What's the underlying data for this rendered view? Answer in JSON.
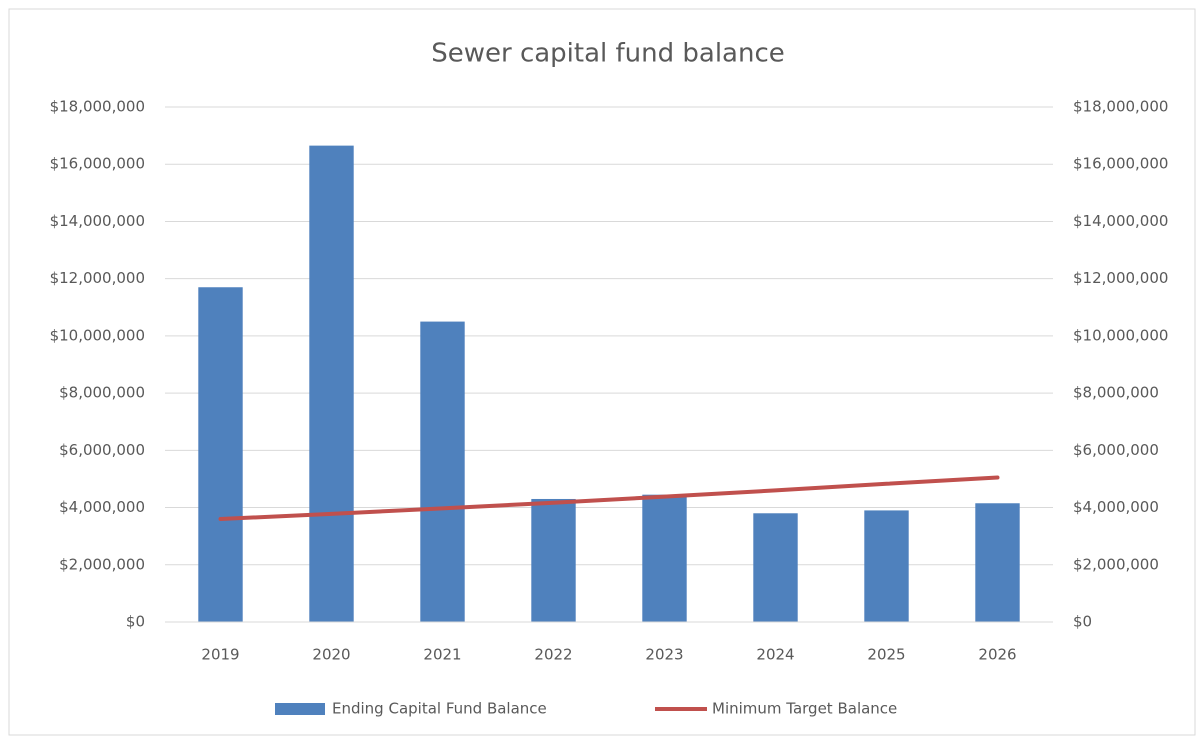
{
  "chart_data": {
    "type": "bar",
    "title": "Sewer capital fund balance",
    "categories": [
      "2019",
      "2020",
      "2021",
      "2022",
      "2023",
      "2024",
      "2025",
      "2026"
    ],
    "series": [
      {
        "name": "Ending Capital Fund Balance",
        "type": "bar",
        "color": "#4f81bd",
        "values": [
          11700000,
          16650000,
          10500000,
          4300000,
          4450000,
          3800000,
          3900000,
          4150000
        ]
      },
      {
        "name": "Minimum Target Balance",
        "type": "line",
        "axis": "y2",
        "color": "#c0504d",
        "values": [
          3600000,
          3780000,
          3970000,
          4170000,
          4380000,
          4600000,
          4830000,
          5050000
        ]
      }
    ],
    "ylim": [
      0,
      18000000
    ],
    "yticks": [
      {
        "value": 0,
        "label": "$0"
      },
      {
        "value": 2000000,
        "label": "$2,000,000"
      },
      {
        "value": 4000000,
        "label": "$4,000,000"
      },
      {
        "value": 6000000,
        "label": "$6,000,000"
      },
      {
        "value": 8000000,
        "label": "$8,000,000"
      },
      {
        "value": 10000000,
        "label": "$10,000,000"
      },
      {
        "value": 12000000,
        "label": "$12,000,000"
      },
      {
        "value": 14000000,
        "label": "$14,000,000"
      },
      {
        "value": 16000000,
        "label": "$16,000,000"
      },
      {
        "value": 18000000,
        "label": "$18,000,000"
      }
    ],
    "y2lim": [
      0,
      18000000
    ],
    "y2ticks": [
      {
        "value": 0,
        "label": "$0"
      },
      {
        "value": 2000000,
        "label": "$2,000,000"
      },
      {
        "value": 4000000,
        "label": "$4,000,000"
      },
      {
        "value": 6000000,
        "label": "$6,000,000"
      },
      {
        "value": 8000000,
        "label": "$8,000,000"
      },
      {
        "value": 10000000,
        "label": "$10,000,000"
      },
      {
        "value": 12000000,
        "label": "$12,000,000"
      },
      {
        "value": 14000000,
        "label": "$14,000,000"
      },
      {
        "value": 16000000,
        "label": "$16,000,000"
      },
      {
        "value": 18000000,
        "label": "$18,000,000"
      }
    ],
    "grid": true,
    "legend": "bottom"
  }
}
